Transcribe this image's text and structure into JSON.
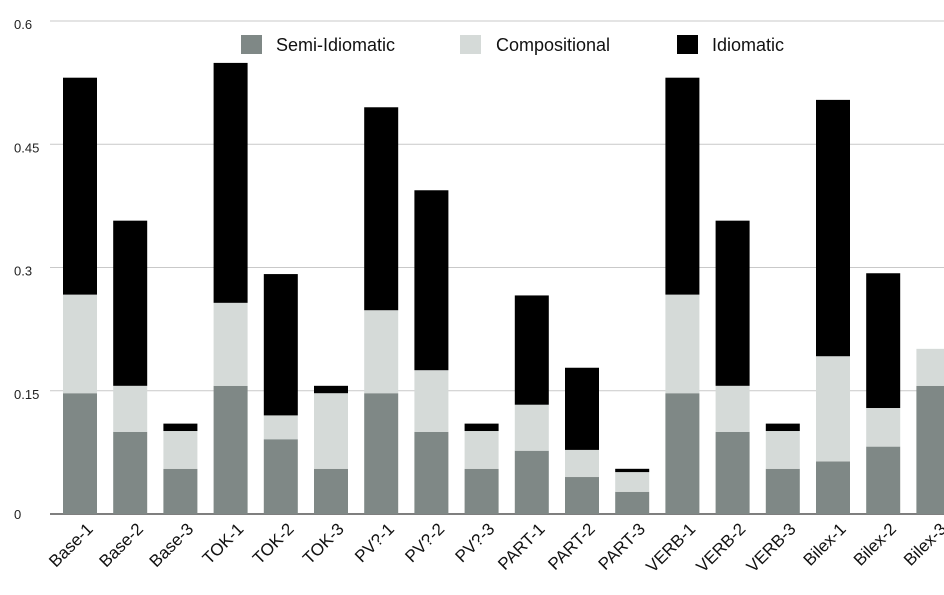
{
  "chart_data": {
    "type": "bar",
    "stacked": true,
    "title": "",
    "xlabel": "",
    "ylabel": "",
    "ylim": [
      0,
      0.6
    ],
    "yticks": [
      "0",
      "0.15",
      "0.3",
      "0.45",
      "0.6"
    ],
    "ytick_values": [
      0,
      0.15,
      0.3,
      0.45,
      0.6
    ],
    "grid": true,
    "legend_position": "top-center",
    "categories": [
      "Base-1",
      "Base-2",
      "Base-3",
      "TOK-1",
      "TOK-2",
      "TOK-3",
      "PV?-1",
      "PV?-2",
      "PV?-3",
      "PART-1",
      "PART-2",
      "PART-3",
      "VERB-1",
      "VERB-2",
      "VERB-3",
      "Bilex-1",
      "Bilex-2",
      "Bilex-3"
    ],
    "series": [
      {
        "name": "Semi-Idiomatic",
        "color": "#7f8886",
        "values": [
          0.147,
          0.1,
          0.055,
          0.156,
          0.091,
          0.055,
          0.147,
          0.1,
          0.055,
          0.077,
          0.045,
          0.027,
          0.147,
          0.1,
          0.055,
          0.064,
          0.082,
          0.156
        ]
      },
      {
        "name": "Compositional",
        "color": "#d5dad8",
        "values": [
          0.12,
          0.056,
          0.046,
          0.101,
          0.029,
          0.092,
          0.101,
          0.075,
          0.046,
          0.056,
          0.033,
          0.024,
          0.12,
          0.056,
          0.046,
          0.128,
          0.047,
          0.045
        ]
      },
      {
        "name": "Idiomatic",
        "color": "#000000",
        "values": [
          0.264,
          0.201,
          0.009,
          0.292,
          0.172,
          0.009,
          0.247,
          0.219,
          0.009,
          0.133,
          0.1,
          0.004,
          0.264,
          0.201,
          0.009,
          0.312,
          0.164,
          0.0
        ]
      }
    ]
  }
}
